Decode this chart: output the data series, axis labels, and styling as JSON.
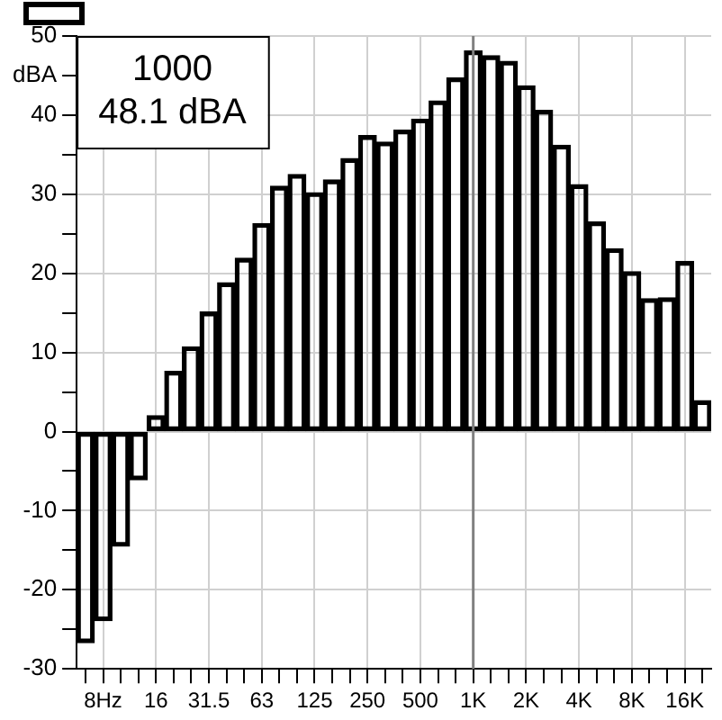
{
  "chart_data": {
    "type": "bar",
    "categories": [
      null,
      "8Hz",
      null,
      null,
      "16",
      null,
      null,
      "31.5",
      null,
      null,
      "63",
      null,
      null,
      "125",
      null,
      null,
      "250",
      null,
      null,
      "500",
      null,
      null,
      "1K",
      null,
      null,
      "2K",
      null,
      null,
      "4K",
      null,
      null,
      "8K",
      null,
      null,
      "16K",
      null
    ],
    "series": [
      {
        "color": "#000000",
        "values": [
          -26.7,
          -23.9,
          -14.5,
          -6.1,
          2.0,
          7.6,
          10.7,
          15.1,
          18.8,
          21.9,
          26.3,
          31.0,
          32.5,
          30.2,
          31.8,
          34.5,
          37.4,
          36.6,
          38.1,
          39.5,
          41.8,
          44.7,
          48.1,
          47.5,
          46.8,
          43.7,
          40.6,
          36.2,
          31.2,
          26.5,
          23.1,
          20.2,
          16.8,
          16.9,
          21.5,
          3.9
        ]
      }
    ],
    "ylim": [
      -30,
      50
    ],
    "yticks": [
      -30,
      {
        "value": -25,
        "label": null
      },
      -20,
      {
        "value": -15,
        "label": null
      },
      -10,
      {
        "value": -5,
        "label": null
      },
      0,
      {
        "value": 5,
        "label": null
      },
      10,
      {
        "value": 15,
        "label": null
      },
      20,
      {
        "value": 25,
        "label": null
      },
      30,
      {
        "value": 35,
        "label": null
      },
      40,
      {
        "value": 45,
        "label": "dBA"
      },
      50
    ],
    "ref_lines": [
      {
        "axis": "x",
        "value": "1K",
        "color": "#808080"
      }
    ],
    "annotations": [
      "1000\n48.1 dBA"
    ],
    "grid": true
  }
}
